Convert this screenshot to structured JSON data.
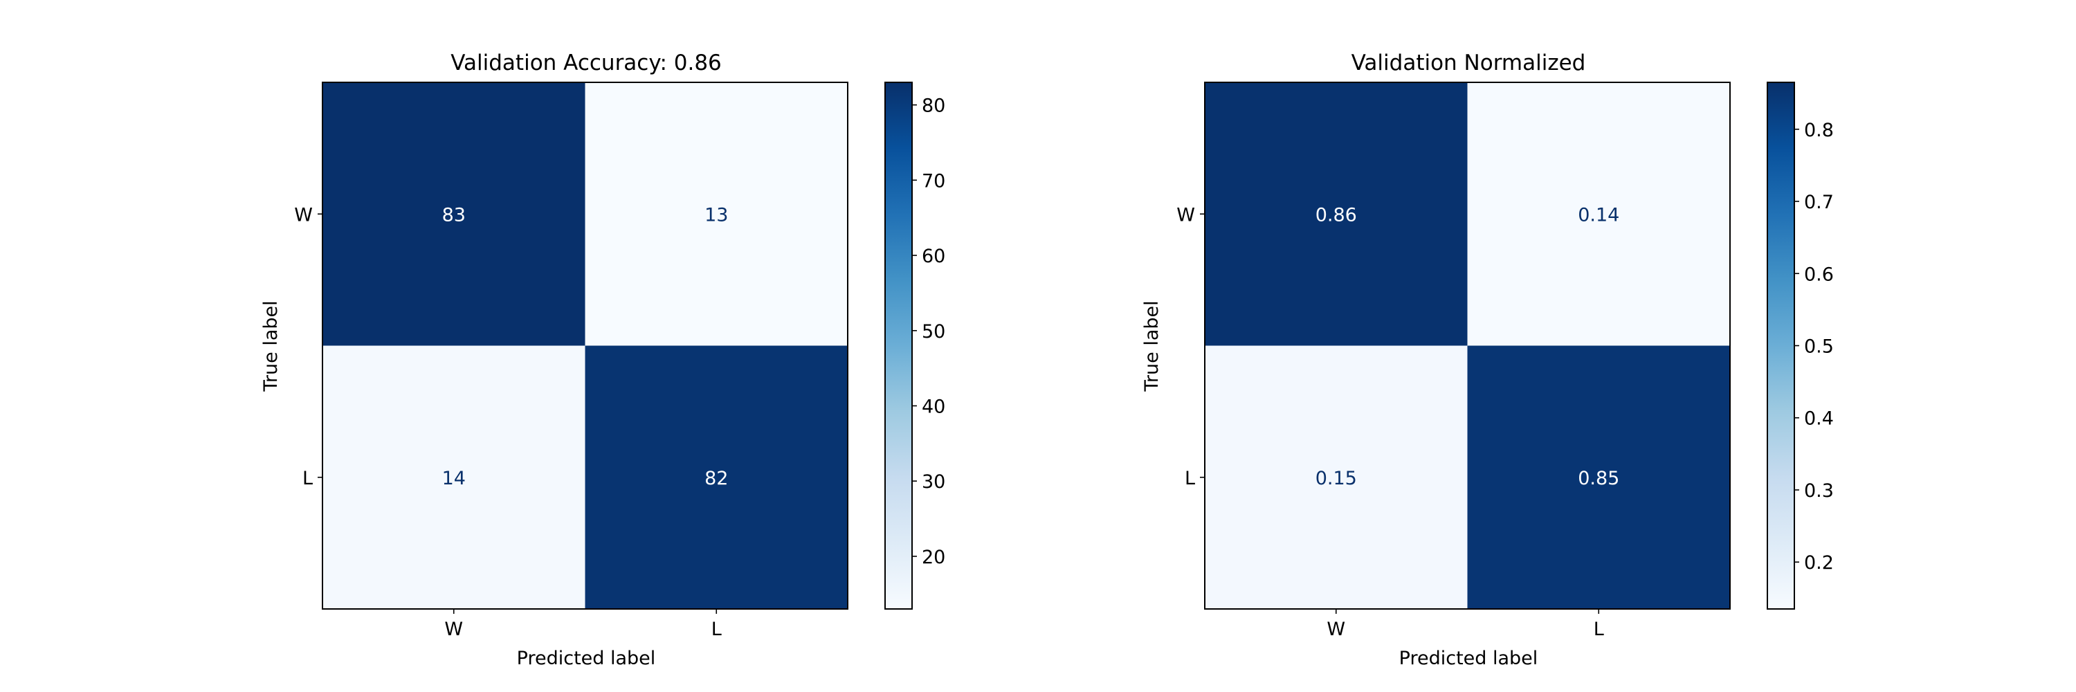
{
  "colormap": {
    "name": "Blues",
    "stops": [
      "#f7fbff",
      "#deebf7",
      "#c6dbef",
      "#9ecae1",
      "#6baed6",
      "#4292c6",
      "#2171b5",
      "#08519c",
      "#08306b"
    ],
    "text_on_dark": "#ffffff",
    "text_on_light": "#08306b"
  },
  "chart_data": [
    {
      "type": "heatmap",
      "title": "Validation Accuracy: 0.86",
      "xlabel": "Predicted label",
      "ylabel": "True label",
      "x_categories": [
        "W",
        "L"
      ],
      "y_categories": [
        "W",
        "L"
      ],
      "values": [
        [
          83,
          13
        ],
        [
          14,
          82
        ]
      ],
      "cell_labels": [
        [
          "83",
          "13"
        ],
        [
          "14",
          "82"
        ]
      ],
      "colorbar": {
        "range": [
          13,
          83
        ],
        "ticks": [
          20,
          30,
          40,
          50,
          60,
          70,
          80
        ],
        "tick_labels": [
          "20",
          "30",
          "40",
          "50",
          "60",
          "70",
          "80"
        ]
      }
    },
    {
      "type": "heatmap",
      "title": "Validation Normalized",
      "xlabel": "Predicted label",
      "ylabel": "True label",
      "x_categories": [
        "W",
        "L"
      ],
      "y_categories": [
        "W",
        "L"
      ],
      "values": [
        [
          0.86,
          0.14
        ],
        [
          0.15,
          0.85
        ]
      ],
      "cell_labels": [
        [
          "0.86",
          "0.14"
        ],
        [
          "0.15",
          "0.85"
        ]
      ],
      "colorbar": {
        "range": [
          0.135,
          0.865
        ],
        "ticks": [
          0.2,
          0.3,
          0.4,
          0.5,
          0.6,
          0.7,
          0.8
        ],
        "tick_labels": [
          "0.2",
          "0.3",
          "0.4",
          "0.5",
          "0.6",
          "0.7",
          "0.8"
        ]
      }
    }
  ]
}
